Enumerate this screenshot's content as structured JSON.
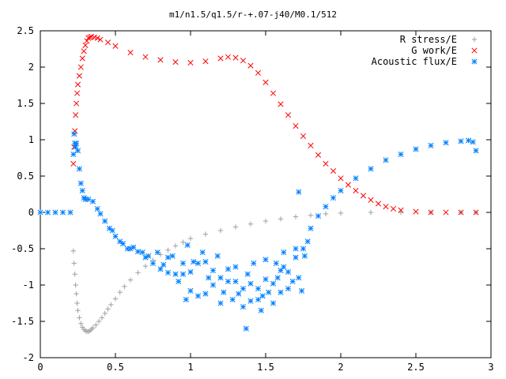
{
  "chart_data": {
    "type": "scatter",
    "title": "m1/n1.5/q1.5/r-+.07-j40/M0.1/512",
    "xlabel": "",
    "ylabel": "",
    "xlim": [
      0,
      3
    ],
    "ylim": [
      -2,
      2.5
    ],
    "xticks": [
      "0",
      "0.5",
      "1",
      "1.5",
      "2",
      "2.5",
      "3"
    ],
    "yticks": [
      "-2",
      "-1.5",
      "-1",
      "-0.5",
      "0",
      "0.5",
      "1",
      "1.5",
      "2",
      "2.5"
    ],
    "grid": false,
    "legend_position": "top-right",
    "series": [
      {
        "name": "R stress/E",
        "marker": "plus",
        "color": "#a0a0a0",
        "points": [
          [
            0.22,
            -0.53
          ],
          [
            0.225,
            -0.7
          ],
          [
            0.23,
            -0.85
          ],
          [
            0.235,
            -1.0
          ],
          [
            0.24,
            -1.12
          ],
          [
            0.245,
            -1.25
          ],
          [
            0.25,
            -1.35
          ],
          [
            0.26,
            -1.45
          ],
          [
            0.27,
            -1.53
          ],
          [
            0.28,
            -1.58
          ],
          [
            0.29,
            -1.61
          ],
          [
            0.3,
            -1.63
          ],
          [
            0.31,
            -1.64
          ],
          [
            0.32,
            -1.64
          ],
          [
            0.33,
            -1.63
          ],
          [
            0.34,
            -1.61
          ],
          [
            0.35,
            -1.59
          ],
          [
            0.37,
            -1.55
          ],
          [
            0.39,
            -1.5
          ],
          [
            0.41,
            -1.45
          ],
          [
            0.43,
            -1.39
          ],
          [
            0.45,
            -1.33
          ],
          [
            0.47,
            -1.27
          ],
          [
            0.5,
            -1.19
          ],
          [
            0.53,
            -1.1
          ],
          [
            0.56,
            -1.02
          ],
          [
            0.6,
            -0.93
          ],
          [
            0.65,
            -0.83
          ],
          [
            0.7,
            -0.74
          ],
          [
            0.75,
            -0.66
          ],
          [
            0.8,
            -0.58
          ],
          [
            0.85,
            -0.52
          ],
          [
            0.9,
            -0.46
          ],
          [
            0.95,
            -0.41
          ],
          [
            1.0,
            -0.36
          ],
          [
            1.1,
            -0.3
          ],
          [
            1.2,
            -0.25
          ],
          [
            1.3,
            -0.2
          ],
          [
            1.4,
            -0.16
          ],
          [
            1.5,
            -0.12
          ],
          [
            1.6,
            -0.09
          ],
          [
            1.7,
            -0.06
          ],
          [
            1.8,
            -0.04
          ],
          [
            1.9,
            -0.02
          ],
          [
            2.0,
            -0.01
          ],
          [
            2.2,
            0.0
          ],
          [
            2.4,
            0.0
          ],
          [
            2.6,
            0.0
          ],
          [
            2.8,
            0.0
          ],
          [
            2.9,
            0.0
          ]
        ]
      },
      {
        "name": "G work/E",
        "marker": "x",
        "color": "#ff0000",
        "points": [
          [
            0.22,
            0.67
          ],
          [
            0.225,
            0.9
          ],
          [
            0.23,
            1.12
          ],
          [
            0.235,
            1.34
          ],
          [
            0.24,
            1.5
          ],
          [
            0.245,
            1.64
          ],
          [
            0.25,
            1.76
          ],
          [
            0.26,
            1.88
          ],
          [
            0.27,
            2.0
          ],
          [
            0.28,
            2.12
          ],
          [
            0.29,
            2.22
          ],
          [
            0.3,
            2.3
          ],
          [
            0.31,
            2.36
          ],
          [
            0.32,
            2.4
          ],
          [
            0.33,
            2.41
          ],
          [
            0.34,
            2.42
          ],
          [
            0.36,
            2.41
          ],
          [
            0.38,
            2.4
          ],
          [
            0.4,
            2.38
          ],
          [
            0.45,
            2.34
          ],
          [
            0.5,
            2.29
          ],
          [
            0.6,
            2.2
          ],
          [
            0.7,
            2.14
          ],
          [
            0.8,
            2.1
          ],
          [
            0.9,
            2.07
          ],
          [
            1.0,
            2.06
          ],
          [
            1.1,
            2.08
          ],
          [
            1.2,
            2.12
          ],
          [
            1.25,
            2.14
          ],
          [
            1.3,
            2.13
          ],
          [
            1.35,
            2.09
          ],
          [
            1.4,
            2.02
          ],
          [
            1.45,
            1.92
          ],
          [
            1.5,
            1.79
          ],
          [
            1.55,
            1.64
          ],
          [
            1.6,
            1.49
          ],
          [
            1.65,
            1.34
          ],
          [
            1.7,
            1.19
          ],
          [
            1.75,
            1.05
          ],
          [
            1.8,
            0.92
          ],
          [
            1.85,
            0.79
          ],
          [
            1.9,
            0.67
          ],
          [
            1.95,
            0.57
          ],
          [
            2.0,
            0.47
          ],
          [
            2.05,
            0.38
          ],
          [
            2.1,
            0.3
          ],
          [
            2.15,
            0.23
          ],
          [
            2.2,
            0.17
          ],
          [
            2.25,
            0.12
          ],
          [
            2.3,
            0.08
          ],
          [
            2.35,
            0.05
          ],
          [
            2.4,
            0.03
          ],
          [
            2.5,
            0.01
          ],
          [
            2.6,
            0.0
          ],
          [
            2.7,
            0.0
          ],
          [
            2.8,
            0.0
          ],
          [
            2.9,
            0.0
          ]
        ]
      },
      {
        "name": "Acoustic flux/E",
        "marker": "star",
        "color": "#0080ff",
        "points": [
          [
            0.0,
            0.0
          ],
          [
            0.05,
            0.0
          ],
          [
            0.1,
            0.0
          ],
          [
            0.15,
            0.0
          ],
          [
            0.2,
            0.0
          ],
          [
            0.22,
            0.8
          ],
          [
            0.225,
            1.08
          ],
          [
            0.23,
            0.95
          ],
          [
            0.235,
            0.9
          ],
          [
            0.24,
            0.95
          ],
          [
            0.25,
            0.85
          ],
          [
            0.26,
            0.6
          ],
          [
            0.27,
            0.4
          ],
          [
            0.28,
            0.3
          ],
          [
            0.29,
            0.2
          ],
          [
            0.3,
            0.18
          ],
          [
            0.32,
            0.18
          ],
          [
            0.35,
            0.15
          ],
          [
            0.38,
            0.05
          ],
          [
            0.4,
            -0.02
          ],
          [
            0.43,
            -0.12
          ],
          [
            0.46,
            -0.22
          ],
          [
            0.5,
            -0.33
          ],
          [
            0.55,
            -0.43
          ],
          [
            0.6,
            -0.5
          ],
          [
            0.65,
            -0.54
          ],
          [
            0.7,
            -0.62
          ],
          [
            0.75,
            -0.7
          ],
          [
            0.8,
            -0.78
          ],
          [
            0.85,
            -0.83
          ],
          [
            0.9,
            -0.85
          ],
          [
            0.95,
            -0.85
          ],
          [
            1.0,
            -0.82
          ],
          [
            1.05,
            -0.7
          ],
          [
            1.1,
            -0.68
          ],
          [
            1.15,
            -0.8
          ],
          [
            1.2,
            -0.9
          ],
          [
            1.25,
            -0.78
          ],
          [
            1.3,
            -0.95
          ],
          [
            1.35,
            -1.05
          ],
          [
            1.37,
            -1.6
          ],
          [
            1.4,
            -0.98
          ],
          [
            1.45,
            -1.05
          ],
          [
            1.5,
            -0.92
          ],
          [
            1.55,
            -0.98
          ],
          [
            1.6,
            -0.8
          ],
          [
            1.65,
            -0.82
          ],
          [
            1.7,
            -0.62
          ],
          [
            1.72,
            0.28
          ],
          [
            1.75,
            -0.5
          ],
          [
            1.8,
            -0.22
          ],
          [
            1.85,
            -0.05
          ],
          [
            1.9,
            0.08
          ],
          [
            1.95,
            0.2
          ],
          [
            2.0,
            0.3
          ],
          [
            2.1,
            0.47
          ],
          [
            2.2,
            0.6
          ],
          [
            2.3,
            0.72
          ],
          [
            2.4,
            0.8
          ],
          [
            2.5,
            0.87
          ],
          [
            2.6,
            0.92
          ],
          [
            2.7,
            0.96
          ],
          [
            2.8,
            0.98
          ],
          [
            2.85,
            0.99
          ],
          [
            2.88,
            0.97
          ],
          [
            2.9,
            0.85
          ],
          [
            0.72,
            -0.6
          ],
          [
            0.78,
            -0.55
          ],
          [
            0.82,
            -0.72
          ],
          [
            0.88,
            -0.6
          ],
          [
            0.92,
            -0.95
          ],
          [
            0.98,
            -0.45
          ],
          [
            1.02,
            -0.68
          ],
          [
            1.05,
            -1.15
          ],
          [
            1.08,
            -0.55
          ],
          [
            1.12,
            -0.9
          ],
          [
            1.15,
            -1.0
          ],
          [
            1.18,
            -0.6
          ],
          [
            1.22,
            -1.1
          ],
          [
            1.25,
            -0.95
          ],
          [
            1.28,
            -1.2
          ],
          [
            1.3,
            -0.75
          ],
          [
            1.32,
            -1.12
          ],
          [
            1.35,
            -1.3
          ],
          [
            1.38,
            -0.85
          ],
          [
            1.4,
            -1.22
          ],
          [
            1.42,
            -0.7
          ],
          [
            1.45,
            -1.2
          ],
          [
            1.48,
            -1.15
          ],
          [
            1.5,
            -0.65
          ],
          [
            1.52,
            -1.1
          ],
          [
            1.55,
            -1.25
          ],
          [
            1.58,
            -0.9
          ],
          [
            1.6,
            -1.1
          ],
          [
            1.62,
            -0.55
          ],
          [
            1.65,
            -1.05
          ],
          [
            1.68,
            -0.95
          ],
          [
            1.7,
            -0.5
          ],
          [
            1.72,
            -0.9
          ],
          [
            1.74,
            -1.08
          ],
          [
            1.76,
            -0.6
          ],
          [
            1.78,
            -0.4
          ],
          [
            1.62,
            -0.75
          ],
          [
            1.57,
            -0.7
          ],
          [
            1.47,
            -1.35
          ],
          [
            1.2,
            -1.25
          ],
          [
            1.1,
            -1.12
          ],
          [
            0.97,
            -1.2
          ],
          [
            1.0,
            -1.08
          ],
          [
            0.95,
            -0.7
          ],
          [
            0.85,
            -0.62
          ],
          [
            0.68,
            -0.55
          ],
          [
            0.62,
            -0.48
          ],
          [
            0.58,
            -0.5
          ],
          [
            0.53,
            -0.4
          ],
          [
            0.48,
            -0.25
          ]
        ]
      }
    ]
  }
}
